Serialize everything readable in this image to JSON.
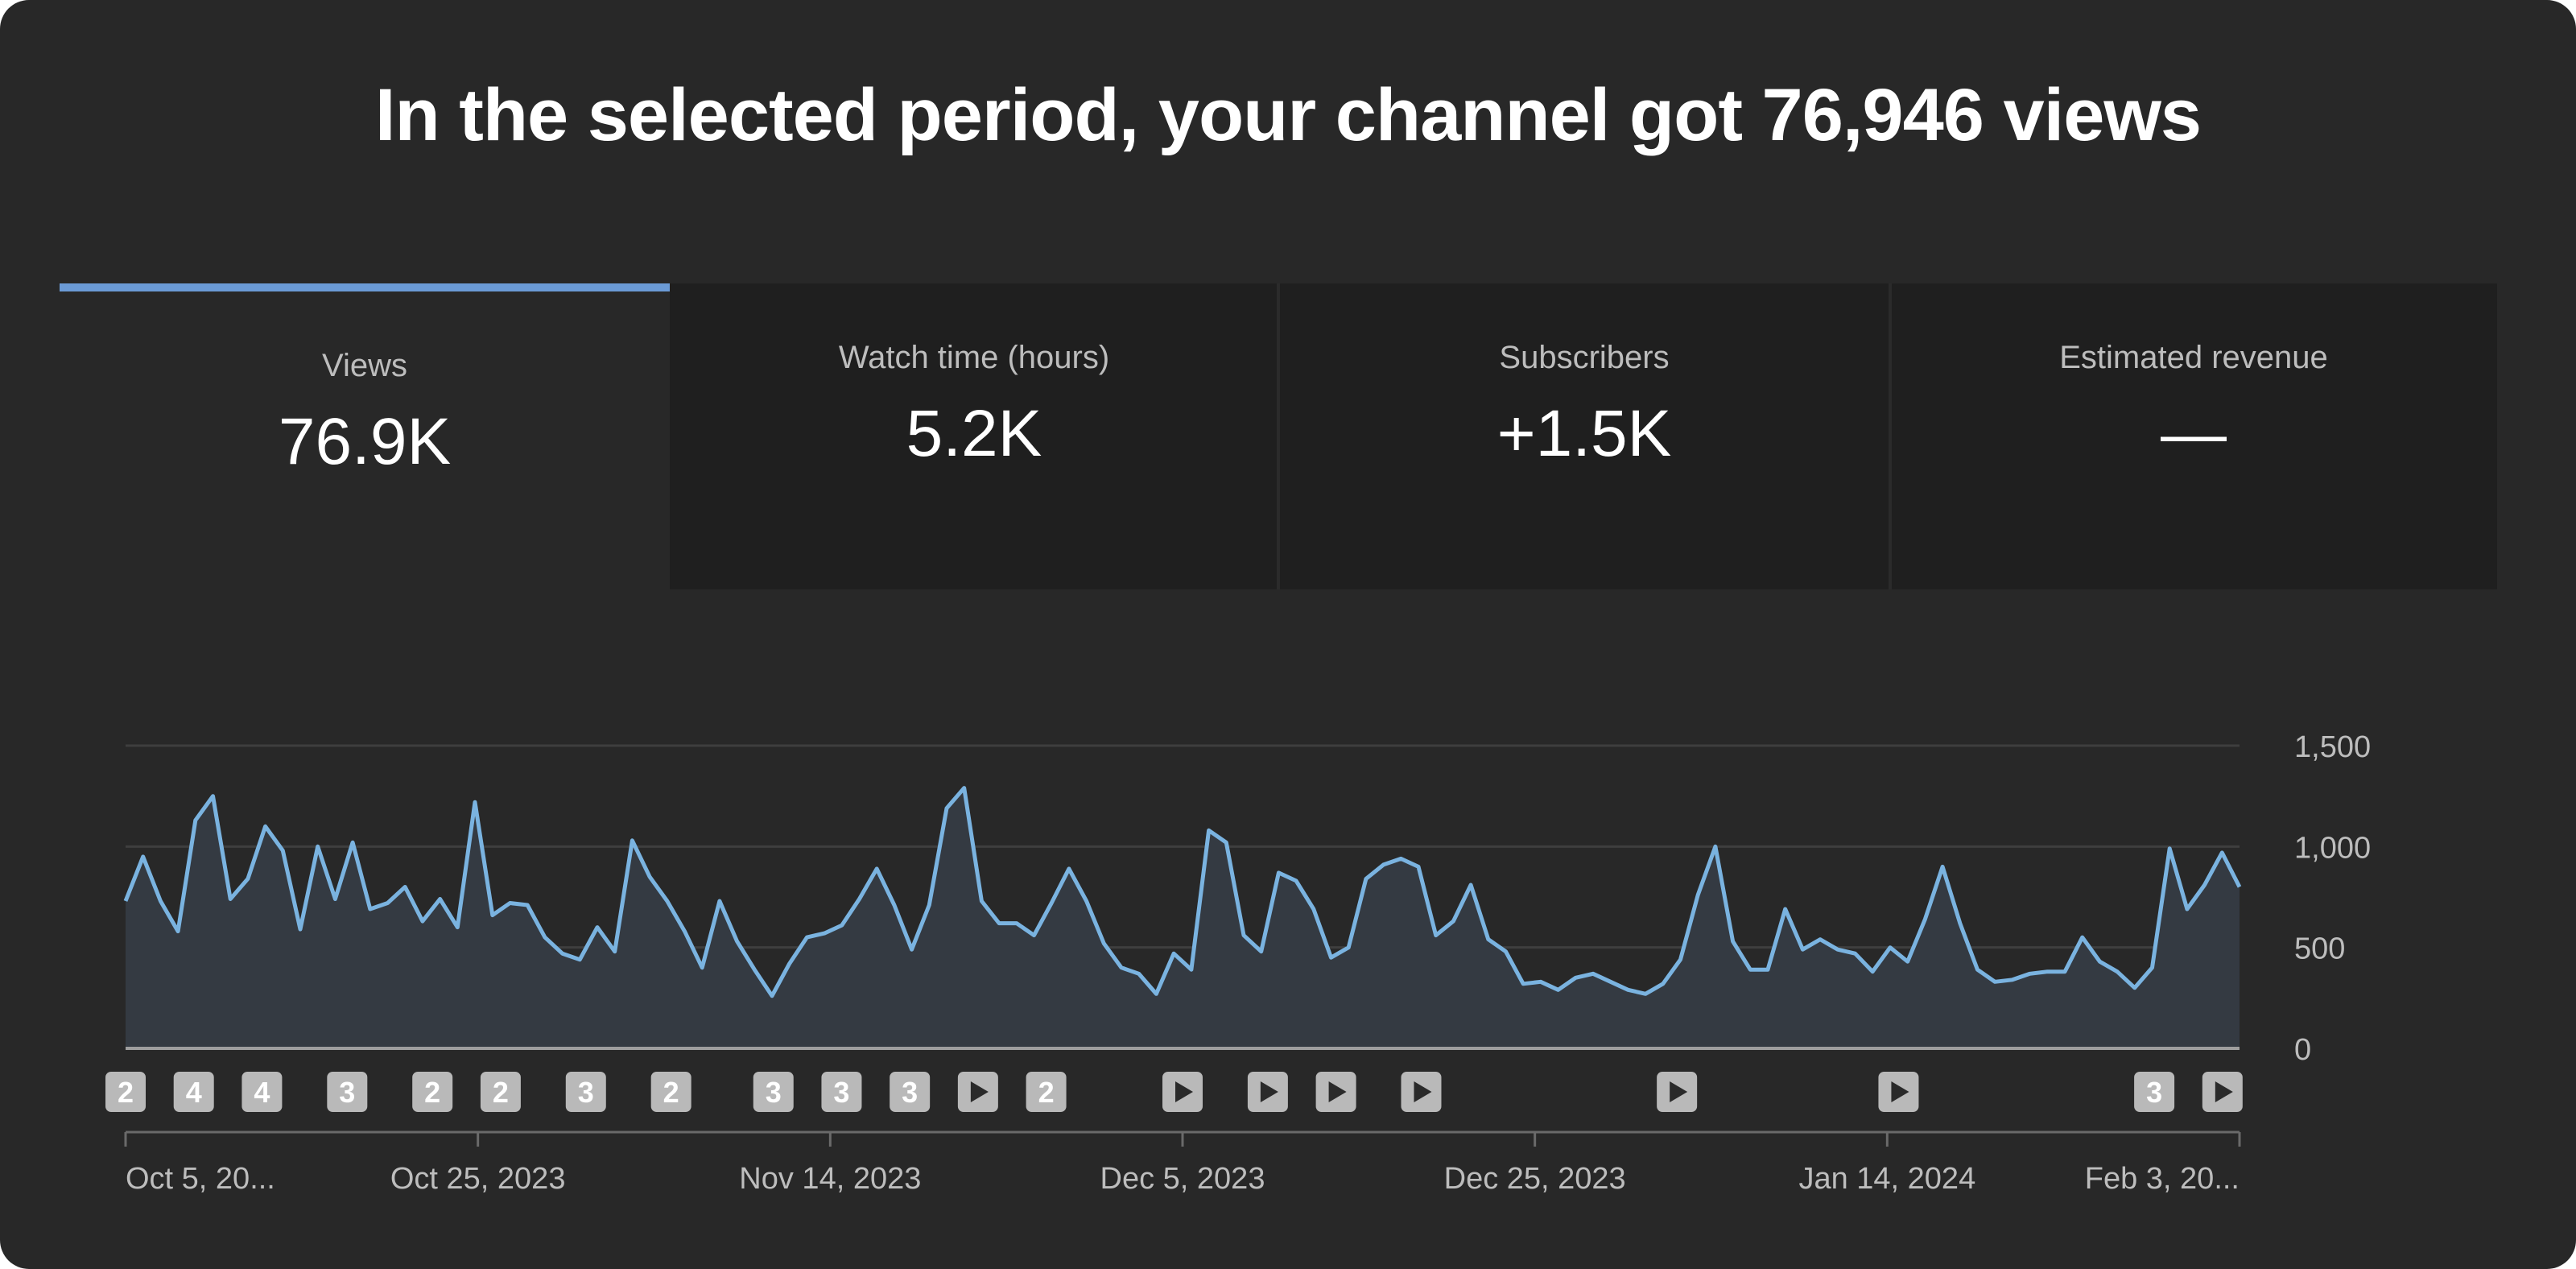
{
  "headline": "In the selected period, your channel got 76,946 views",
  "colors": {
    "frame_bg": "#282828",
    "card_bg": "#1f1f1f",
    "accent": "#6b9bd6",
    "line": "#7ab3e0",
    "area": "#343a42",
    "grid": "#3e3e3e",
    "axis_text": "#bdbdbd",
    "marker_bg": "#b9b9b9",
    "marker_fg": "#2a2a2a"
  },
  "metrics": [
    {
      "label": "Views",
      "value": "76.9K",
      "active": true
    },
    {
      "label": "Watch time (hours)",
      "value": "5.2K",
      "active": false
    },
    {
      "label": "Subscribers",
      "value": "+1.5K",
      "active": false
    },
    {
      "label": "Estimated revenue",
      "value": "—",
      "active": false
    }
  ],
  "chart_data": {
    "type": "area",
    "metric": "Views",
    "x_tick_labels": [
      "Oct 5, 20...",
      "Oct 25, 2023",
      "Nov 14, 2023",
      "Dec 5, 2023",
      "Dec 25, 2023",
      "Jan 14, 2024",
      "Feb 3, 20..."
    ],
    "y_ticks": [
      0,
      500,
      1000,
      1500
    ],
    "y_tick_labels": [
      "0",
      "500",
      "1,000",
      "1,500"
    ],
    "ylim": [
      0,
      1500
    ],
    "grid": true,
    "y_axis_side": "right",
    "x_range": [
      "2023-10-05",
      "2024-02-06"
    ],
    "daily_views": [
      730,
      950,
      730,
      580,
      1130,
      1250,
      740,
      840,
      1100,
      980,
      590,
      1000,
      740,
      1020,
      690,
      720,
      800,
      630,
      740,
      600,
      1220,
      660,
      720,
      710,
      550,
      470,
      440,
      600,
      480,
      1030,
      850,
      730,
      580,
      400,
      730,
      530,
      390,
      260,
      420,
      550,
      570,
      610,
      740,
      890,
      710,
      490,
      710,
      1190,
      1290,
      730,
      620,
      620,
      560,
      720,
      890,
      730,
      520,
      400,
      370,
      270,
      470,
      390,
      1080,
      1020,
      560,
      480,
      870,
      830,
      690,
      450,
      500,
      840,
      910,
      940,
      900,
      560,
      630,
      810,
      540,
      480,
      320,
      330,
      290,
      350,
      370,
      330,
      290,
      270,
      320,
      440,
      760,
      1000,
      530,
      390,
      390,
      690,
      490,
      540,
      490,
      470,
      380,
      500,
      430,
      640,
      900,
      620,
      390,
      330,
      340,
      370,
      380,
      380,
      550,
      430,
      380,
      300,
      400,
      990,
      690,
      810,
      970,
      800
    ],
    "upload_markers": [
      {
        "date": "2023-10-05",
        "label": "2"
      },
      {
        "date": "2023-10-09",
        "label": "4"
      },
      {
        "date": "2023-10-13",
        "label": "4"
      },
      {
        "date": "2023-10-18",
        "label": "3"
      },
      {
        "date": "2023-10-23",
        "label": "2"
      },
      {
        "date": "2023-10-27",
        "label": "2"
      },
      {
        "date": "2023-11-01",
        "label": "3"
      },
      {
        "date": "2023-11-06",
        "label": "2"
      },
      {
        "date": "2023-11-12",
        "label": "3"
      },
      {
        "date": "2023-11-16",
        "label": "3"
      },
      {
        "date": "2023-11-20",
        "label": "3"
      },
      {
        "date": "2023-11-24",
        "label": "play"
      },
      {
        "date": "2023-11-28",
        "label": "2"
      },
      {
        "date": "2023-12-06",
        "label": "play"
      },
      {
        "date": "2023-12-11",
        "label": "play"
      },
      {
        "date": "2023-12-15",
        "label": "play"
      },
      {
        "date": "2023-12-20",
        "label": "play"
      },
      {
        "date": "2024-01-04",
        "label": "play"
      },
      {
        "date": "2024-01-17",
        "label": "play"
      },
      {
        "date": "2024-02-01",
        "label": "3"
      },
      {
        "date": "2024-02-05",
        "label": "play"
      }
    ]
  }
}
